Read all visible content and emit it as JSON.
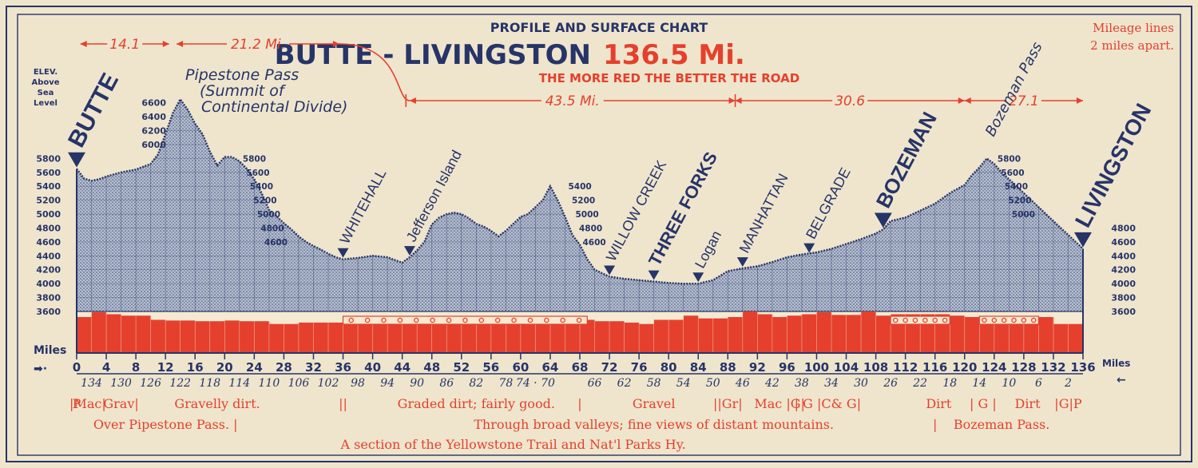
{
  "chart_data": {
    "type": "area",
    "header": "PROFILE AND SURFACE CHART",
    "title": "BUTTE - LIVINGSTON",
    "title_distance": "136.5 Mi.",
    "subtitle": "THE MORE RED THE BETTER THE ROAD",
    "note_line1": "Mileage lines",
    "note_line2": "2 miles apart.",
    "ylabel_line1": "ELEV.",
    "ylabel_line2": "Above",
    "ylabel_line3": "Sea",
    "ylabel_line4": "Level",
    "xlabel": "Miles",
    "xlabel_right": "Miles",
    "x_range": [
      0,
      136
    ],
    "y_range": [
      3600,
      6700
    ],
    "colors": {
      "fill": "#a9b4c6",
      "ink": "#263468",
      "road": "#e5402d",
      "paper": "#efe5cd"
    },
    "profile": {
      "x": [
        0,
        1,
        2,
        3,
        4,
        6,
        8,
        10,
        11,
        12,
        13,
        14,
        15,
        16,
        17,
        18,
        19,
        20,
        21,
        22,
        23,
        24,
        25,
        26,
        27,
        28,
        29,
        30,
        31,
        32,
        33,
        34,
        35,
        36,
        38,
        40,
        42,
        44,
        45,
        46,
        47,
        48,
        49,
        50,
        51,
        52,
        53,
        54,
        55,
        56,
        57,
        58,
        59,
        60,
        61,
        62,
        63,
        64,
        65,
        66,
        67,
        68,
        69,
        70,
        72,
        74,
        76,
        78,
        80,
        82,
        84,
        86,
        88,
        90,
        92,
        94,
        96,
        98,
        100,
        102,
        104,
        106,
        108,
        109,
        110,
        112,
        114,
        116,
        118,
        120,
        121,
        122,
        123,
        124,
        125,
        126,
        127,
        128,
        129,
        130,
        131,
        132,
        133,
        134,
        135,
        136
      ],
      "y": [
        5650,
        5510,
        5480,
        5500,
        5540,
        5600,
        5640,
        5720,
        5860,
        6150,
        6450,
        6650,
        6500,
        6300,
        6150,
        5900,
        5700,
        5820,
        5820,
        5760,
        5650,
        5500,
        5300,
        5060,
        4970,
        4870,
        4780,
        4680,
        4600,
        4540,
        4490,
        4430,
        4380,
        4350,
        4370,
        4400,
        4380,
        4300,
        4380,
        4480,
        4600,
        4850,
        4950,
        5000,
        5020,
        5000,
        4940,
        4860,
        4820,
        4760,
        4680,
        4760,
        4860,
        4960,
        5000,
        5100,
        5200,
        5400,
        5200,
        4960,
        4700,
        4560,
        4350,
        4200,
        4100,
        4070,
        4050,
        4030,
        4010,
        4000,
        4000,
        4050,
        4180,
        4220,
        4250,
        4310,
        4380,
        4420,
        4450,
        4500,
        4570,
        4640,
        4720,
        4780,
        4900,
        4950,
        5050,
        5150,
        5300,
        5420,
        5560,
        5670,
        5800,
        5720,
        5600,
        5500,
        5400,
        5300,
        5200,
        5100,
        5000,
        4900,
        4800,
        4700,
        4600,
        4500
      ]
    },
    "road_quality": {
      "x": [
        0,
        2,
        4,
        6,
        8,
        10,
        12,
        14,
        16,
        18,
        20,
        22,
        24,
        26,
        28,
        30,
        32,
        34,
        36,
        38,
        40,
        42,
        44,
        46,
        48,
        50,
        52,
        54,
        56,
        58,
        60,
        62,
        64,
        66,
        68,
        70,
        72,
        74,
        76,
        78,
        80,
        82,
        84,
        86,
        88,
        90,
        92,
        94,
        96,
        98,
        100,
        102,
        104,
        106,
        108,
        110,
        112,
        114,
        116,
        118,
        120,
        122,
        124,
        126,
        128,
        130,
        132,
        134
      ],
      "y": [
        3520,
        3590,
        3560,
        3540,
        3540,
        3480,
        3470,
        3470,
        3460,
        3460,
        3470,
        3460,
        3460,
        3420,
        3420,
        3440,
        3440,
        3440,
        3480,
        3480,
        3480,
        3480,
        3480,
        3480,
        3480,
        3480,
        3480,
        3480,
        3480,
        3480,
        3480,
        3480,
        3480,
        3500,
        3480,
        3460,
        3460,
        3440,
        3420,
        3480,
        3480,
        3540,
        3500,
        3500,
        3520,
        3600,
        3560,
        3520,
        3540,
        3560,
        3590,
        3550,
        3550,
        3600,
        3540,
        3560,
        3560,
        3560,
        3560,
        3540,
        3520,
        3520,
        3520,
        3520,
        3520,
        3520,
        3420,
        3420
      ]
    },
    "road_level_band": {
      "y": [
        3360,
        3600
      ]
    },
    "graded_segments": [
      {
        "from": 36,
        "to": 69,
        "cells": 15
      },
      {
        "from": 110,
        "to": 118,
        "cells": 6
      },
      {
        "from": 122,
        "to": 130,
        "cells": 6
      }
    ],
    "y_ticks_left": [
      "6600",
      "6400",
      "6200",
      "6000"
    ],
    "y_ticks_left_low": [
      "5800",
      "5600",
      "5400",
      "5200",
      "5000",
      "4800",
      "4600",
      "4400",
      "4200",
      "4000",
      "3800",
      "3600"
    ],
    "y_ticks_right": [
      "4800",
      "4600",
      "4400",
      "4200",
      "4000",
      "3800",
      "3600"
    ],
    "local_ticks": [
      {
        "x": 22,
        "labels": [
          "5800",
          "5600",
          "5400",
          "5200",
          "5000",
          "4800",
          "4600"
        ],
        "start": 5800
      },
      {
        "x": 66,
        "labels": [
          "5400",
          "5200",
          "5000",
          "4800",
          "4600"
        ],
        "start": 5400
      },
      {
        "x": 124,
        "labels": [
          "5800",
          "5600",
          "5400",
          "5200",
          "5000"
        ],
        "start": 5800
      }
    ],
    "x_ticks": [
      "0",
      "4",
      "8",
      "12",
      "16",
      "20",
      "24",
      "28",
      "32",
      "36",
      "40",
      "44",
      "48",
      "52",
      "56",
      "60",
      "64",
      "68",
      "72",
      "76",
      "80",
      "84",
      "88",
      "92",
      "96",
      "100",
      "104",
      "108",
      "112",
      "116",
      "120",
      "124",
      "128",
      "132",
      "136"
    ],
    "x_ticks_reverse": [
      "134",
      "130",
      "126",
      "122",
      "118",
      "114",
      "110",
      "106",
      "102",
      "98",
      "94",
      "90",
      "86",
      "82",
      "78",
      "74 · 70",
      "66",
      "62",
      "58",
      "54",
      "50",
      "46",
      "42",
      "38",
      "34",
      "30",
      "26",
      "22",
      "18",
      "14",
      "10",
      "6",
      "2"
    ],
    "towns": [
      {
        "name": "BUTTE",
        "x": 0
      },
      {
        "name": "WHITEHALL",
        "x": 36
      },
      {
        "name": "Jefferson Island",
        "x": 45
      },
      {
        "name": "WILLOW CREEK",
        "x": 72
      },
      {
        "name": "THREE FORKS",
        "x": 78
      },
      {
        "name": "Logan",
        "x": 84
      },
      {
        "name": "MANHATTAN",
        "x": 90
      },
      {
        "name": "BELGRADE",
        "x": 99
      },
      {
        "name": "BOZEMAN",
        "x": 109
      },
      {
        "name": "LIVINGSTON",
        "x": 136
      }
    ],
    "annotations": {
      "pipestone_line1": "Pipestone Pass",
      "pipestone_line2": "(Summit of",
      "pipestone_line3": "Continental Divide)",
      "bozeman_pass": "Bozeman Pass"
    },
    "distances": [
      "14.1",
      "21.2 Mi.",
      "43.5 Mi.",
      "30.6",
      "27.1"
    ],
    "surface_line1": [
      {
        "x": 0,
        "text": "P"
      },
      {
        "x": 1.5,
        "text": "|Mac|"
      },
      {
        "x": 6,
        "text": "Grav|"
      },
      {
        "x": 19,
        "text": "Gravelly dirt."
      },
      {
        "x": 36,
        "text": "||"
      },
      {
        "x": 54,
        "text": "Graded dirt; fairly good."
      },
      {
        "x": 68,
        "text": "|"
      },
      {
        "x": 78,
        "text": "Gravel"
      },
      {
        "x": 88,
        "text": "||Gr|"
      },
      {
        "x": 95,
        "text": "Mac |G|"
      },
      {
        "x": 101.5,
        "text": "| G |C& G|"
      },
      {
        "x": 116.5,
        "text": "Dirt"
      },
      {
        "x": 122.5,
        "text": "| G |"
      },
      {
        "x": 128.5,
        "text": "Dirt"
      },
      {
        "x": 134,
        "text": "|G|P"
      }
    ],
    "surface_line2": [
      {
        "x": 12,
        "text": "Over Pipestone Pass. |"
      },
      {
        "x": 78,
        "text": "Through broad valleys; fine views of distant mountains."
      },
      {
        "x": 116,
        "text": "|"
      },
      {
        "x": 125,
        "text": "Bozeman Pass."
      }
    ],
    "surface_line3": [
      {
        "x": 59,
        "text": "A section of the Yellowstone Trail and Nat'l Parks Hy."
      }
    ]
  }
}
